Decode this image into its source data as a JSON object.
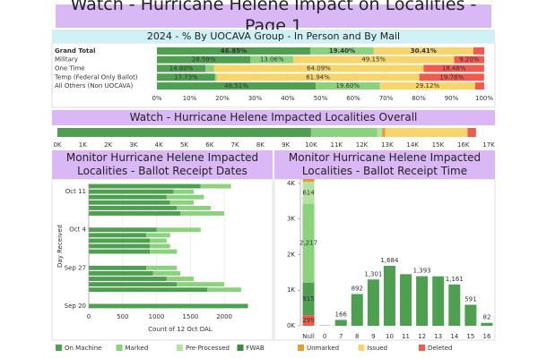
{
  "title": "Watch - Hurricane Helene Impact on Localities - Page 1",
  "legend": [
    {
      "name": "On Machine",
      "color": "#4e9f50"
    },
    {
      "name": "Marked",
      "color": "#8cd17d"
    },
    {
      "name": "Pre-Processed",
      "color": "#b5e2a0"
    },
    {
      "name": "FWAB",
      "color": "#3c8a3f"
    },
    {
      "name": "Unmarked",
      "color": "#e49e2c"
    },
    {
      "name": "Issued",
      "color": "#f7d56a"
    },
    {
      "name": "Deleted",
      "color": "#f05b4f"
    }
  ],
  "chart_data": [
    {
      "type": "bar",
      "orientation": "horizontal",
      "stacked": true,
      "grid": true,
      "title": "2024 - % By UOCAVA Group - In Person and By Mail",
      "categories": [
        "Grand Total",
        "Military",
        "One Time",
        "Temp (Federal Only Ballot)",
        "All Others (Non UOCAVA)"
      ],
      "series": [
        {
          "name": "On Machine",
          "color": "#4e9f50",
          "values": [
            46.85,
            28.59,
            14.8,
            17.73,
            48.51
          ],
          "value_labels": [
            "46.85%",
            "28.59%",
            "14.80%",
            "17.73%",
            "48.51%"
          ]
        },
        {
          "name": "Marked",
          "color": "#8cd17d",
          "values": [
            19.4,
            13.06,
            2.6,
            0.5,
            19.6
          ],
          "value_labels": [
            "19.40%",
            "13.06%",
            null,
            null,
            "19.60%"
          ]
        },
        {
          "name": "Issued",
          "color": "#f7d56a",
          "values": [
            30.41,
            49.15,
            64.09,
            61.94,
            29.12
          ],
          "value_labels": [
            "30.41%",
            "49.15%",
            "64.09%",
            "61.94%",
            "29.12%"
          ]
        },
        {
          "name": "Deleted",
          "color": "#f05b4f",
          "values": [
            3.34,
            9.2,
            18.48,
            19.78,
            2.77
          ],
          "value_labels": [
            null,
            "9.20%",
            "18.48%",
            "19.78%",
            null
          ]
        }
      ],
      "xlim": [
        0,
        100
      ],
      "xticks": [
        {
          "value": 0,
          "label": "0%"
        },
        {
          "value": 10,
          "label": "10%"
        },
        {
          "value": 20,
          "label": "20%"
        },
        {
          "value": 30,
          "label": "30%"
        },
        {
          "value": 40,
          "label": "40%"
        },
        {
          "value": 50,
          "label": "50%"
        },
        {
          "value": 60,
          "label": "60%"
        },
        {
          "value": 70,
          "label": "70%"
        },
        {
          "value": 80,
          "label": "80%"
        },
        {
          "value": 90,
          "label": "90%"
        },
        {
          "value": 100,
          "label": "100%"
        }
      ]
    },
    {
      "type": "bar",
      "orientation": "horizontal",
      "stacked": true,
      "grid": false,
      "title": "Watch - Hurricane Helene Impacted Localities Overall",
      "categories": [
        null
      ],
      "series": [
        {
          "name": "On Machine",
          "color": "#4e9f50",
          "values": [
            10000
          ]
        },
        {
          "name": "Marked",
          "color": "#8cd17d",
          "values": [
            2600
          ]
        },
        {
          "name": "Pre-Processed",
          "color": "#b5e2a0",
          "values": [
            200
          ]
        },
        {
          "name": "Unmarked",
          "color": "#e49e2c",
          "values": [
            120
          ]
        },
        {
          "name": "Issued",
          "color": "#f7d56a",
          "values": [
            3250
          ]
        },
        {
          "name": "Deleted",
          "color": "#f05b4f",
          "values": [
            330
          ]
        }
      ],
      "xlim": [
        0,
        17000
      ],
      "xticks": [
        {
          "value": 0,
          "label": "0K"
        },
        {
          "value": 1000,
          "label": "1K"
        },
        {
          "value": 2000,
          "label": "2K"
        },
        {
          "value": 3000,
          "label": "3K"
        },
        {
          "value": 4000,
          "label": "4K"
        },
        {
          "value": 5000,
          "label": "5K"
        },
        {
          "value": 6000,
          "label": "6K"
        },
        {
          "value": 7000,
          "label": "7K"
        },
        {
          "value": 8000,
          "label": "8K"
        },
        {
          "value": 9000,
          "label": "9K"
        },
        {
          "value": 10000,
          "label": "10K"
        },
        {
          "value": 11000,
          "label": "11K"
        },
        {
          "value": 12000,
          "label": "12K"
        },
        {
          "value": 13000,
          "label": "13K"
        },
        {
          "value": 14000,
          "label": "14K"
        },
        {
          "value": 15000,
          "label": "15K"
        },
        {
          "value": 16000,
          "label": "16K"
        },
        {
          "value": 17000,
          "label": "17K"
        }
      ]
    },
    {
      "type": "bar",
      "orientation": "horizontal",
      "stacked": true,
      "grid": true,
      "title": "Monitor Hurricane Helene Impacted Localities - Ballot Receipt Dates",
      "xlabel": "Count of 12 Oct DAL",
      "ylabel": "Day Received",
      "categories": [
        null,
        "Oct 11",
        null,
        null,
        null,
        null,
        null,
        null,
        "Oct 4",
        null,
        null,
        null,
        null,
        null,
        null,
        "Sep 27",
        null,
        null,
        null,
        null,
        null,
        null,
        "Sep 20"
      ],
      "series": [
        {
          "name": "On Machine",
          "color": "#4e9f50",
          "values": [
            1650,
            1250,
            1150,
            1200,
            1300,
            1350,
            0,
            0,
            1000,
            850,
            900,
            900,
            900,
            0,
            0,
            850,
            950,
            1150,
            1300,
            1750,
            0,
            0,
            2350
          ]
        },
        {
          "name": "Marked",
          "color": "#8cd17d",
          "values": [
            450,
            300,
            550,
            350,
            500,
            650,
            0,
            0,
            650,
            350,
            250,
            300,
            400,
            0,
            0,
            450,
            400,
            400,
            700,
            500,
            0,
            0,
            0
          ]
        }
      ],
      "xlim": [
        0,
        2700
      ],
      "xticks": [
        0,
        500,
        1000,
        1500,
        2000
      ]
    },
    {
      "type": "bar",
      "orientation": "vertical",
      "stacked": true,
      "grid": false,
      "title": "Monitor Hurricane Helene Impacted Localities - Ballot Receipt Time",
      "categories": [
        "Null",
        "0",
        "7",
        "8",
        "9",
        "10",
        "11",
        "12",
        "13",
        "14",
        "15",
        "16"
      ],
      "series": [
        {
          "name": "Deleted",
          "color": "#f05b4f",
          "values": [
            299,
            null,
            null,
            null,
            null,
            null,
            null,
            null,
            null,
            null,
            null,
            null
          ],
          "value_labels": [
            "299",
            null,
            null,
            null,
            null,
            null,
            null,
            null,
            null,
            null,
            null,
            null
          ]
        },
        {
          "name": "On Machine",
          "color": "#4e9f50",
          "values": [
            915,
            10,
            166,
            892,
            1301,
            1684,
            1450,
            1393,
            1390,
            1161,
            591,
            82
          ],
          "value_labels": [
            "915",
            null,
            "166",
            "892",
            "1,301",
            "1,684",
            null,
            "1,393",
            null,
            "1,161",
            "591",
            "82"
          ]
        },
        {
          "name": "Marked",
          "color": "#8cd17d",
          "values": [
            2217,
            null,
            null,
            null,
            null,
            null,
            null,
            null,
            null,
            null,
            null,
            null
          ],
          "value_labels": [
            "2,217",
            null,
            null,
            null,
            null,
            null,
            null,
            null,
            null,
            null,
            null,
            null
          ]
        },
        {
          "name": "Pre-Processed",
          "color": "#b5e2a0",
          "values": [
            614,
            null,
            null,
            null,
            null,
            null,
            null,
            null,
            null,
            null,
            null,
            null
          ],
          "value_labels": [
            "614",
            null,
            null,
            null,
            null,
            null,
            null,
            null,
            null,
            null,
            null,
            null
          ]
        },
        {
          "name": "Unmarked",
          "color": "#e49e2c",
          "values": [
            80,
            null,
            null,
            null,
            null,
            null,
            null,
            null,
            null,
            null,
            null,
            null
          ]
        }
      ],
      "ylim": [
        0,
        4200
      ],
      "yticks": [
        {
          "value": 0,
          "label": "0K"
        },
        {
          "value": 1000,
          "label": "1K"
        },
        {
          "value": 2000,
          "label": "2K"
        },
        {
          "value": 3000,
          "label": "3K"
        },
        {
          "value": 4000,
          "label": "4K"
        }
      ]
    }
  ]
}
